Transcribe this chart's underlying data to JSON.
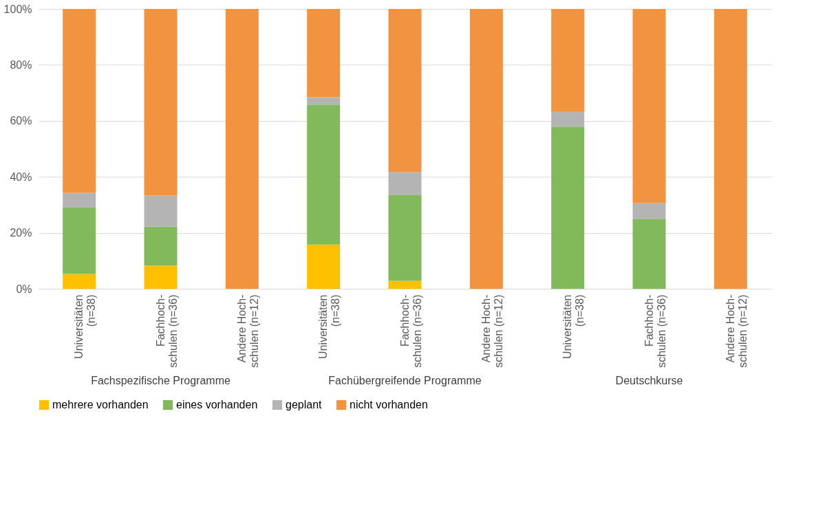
{
  "chart_data": [
    {
      "type": "bar",
      "stacked": true,
      "title": "Fachspezifische Programme",
      "categories": [
        "Universitäten\n(n=38)",
        "Fachhoch-\nschulen (n=36)",
        "Andere Hoch-\nschulen (n=12)"
      ],
      "ylim": [
        0,
        100
      ],
      "yticks": [
        {
          "value": 0,
          "label": "0%"
        },
        {
          "value": 20,
          "label": "20%"
        },
        {
          "value": 40,
          "label": "40%"
        },
        {
          "value": 60,
          "label": "60%"
        },
        {
          "value": 80,
          "label": "80%"
        },
        {
          "value": 100,
          "label": "100%"
        }
      ],
      "grid": "y",
      "legend": "bottom",
      "series": [
        {
          "name": "mehrere vorhanden",
          "color": "#ffc000",
          "values": [
            5.3,
            8.3,
            0
          ]
        },
        {
          "name": "eines vorhanden",
          "color": "#82b95a",
          "values": [
            23.7,
            13.9,
            0
          ]
        },
        {
          "name": "geplant",
          "color": "#b4b4b4",
          "values": [
            5.3,
            11.1,
            0
          ]
        },
        {
          "name": "nicht vorhanden",
          "color": "#f29340",
          "values": [
            65.7,
            66.7,
            100
          ]
        }
      ]
    },
    {
      "type": "bar",
      "stacked": true,
      "title": "Fachübergreifende Programme",
      "categories": [
        "Universitäten\n(n=38)",
        "Fachhoch-\nschulen (n=36)",
        "Andere Hoch-\nschulen (n=12)"
      ],
      "ylim": [
        0,
        100
      ],
      "yticks": [
        0,
        20,
        40,
        60,
        80,
        100
      ],
      "grid": "y",
      "tick_labels": "x",
      "series": [
        {
          "name": "mehrere vorhanden",
          "color": "#ffc000",
          "values": [
            15.8,
            2.8,
            0
          ]
        },
        {
          "name": "eines vorhanden",
          "color": "#82b95a",
          "values": [
            50.0,
            30.6,
            0
          ]
        },
        {
          "name": "geplant",
          "color": "#b4b4b4",
          "values": [
            2.6,
            8.3,
            0
          ]
        },
        {
          "name": "nicht vorhanden",
          "color": "#f29340",
          "values": [
            31.6,
            58.3,
            100
          ]
        }
      ]
    },
    {
      "type": "bar",
      "stacked": true,
      "title": "Deutschkurse",
      "categories": [
        "Universitäten\n(n=38)",
        "Fachhoch-\nschulen (n=36)",
        "Andere Hoch-\nschulen (n=12)"
      ],
      "ylim": [
        0,
        100
      ],
      "yticks": [
        0,
        20,
        40,
        60,
        80,
        100
      ],
      "grid": "y",
      "tick_labels": "x",
      "series": [
        {
          "name": "mehrere vorhanden",
          "color": "#ffc000",
          "values": [
            0,
            0,
            0
          ]
        },
        {
          "name": "eines vorhanden",
          "color": "#82b95a",
          "values": [
            57.9,
            25.0,
            0
          ]
        },
        {
          "name": "geplant",
          "color": "#b4b4b4",
          "values": [
            5.3,
            5.6,
            0
          ]
        },
        {
          "name": "nicht vorhanden",
          "color": "#f29340",
          "values": [
            36.8,
            69.4,
            100
          ]
        }
      ]
    }
  ]
}
